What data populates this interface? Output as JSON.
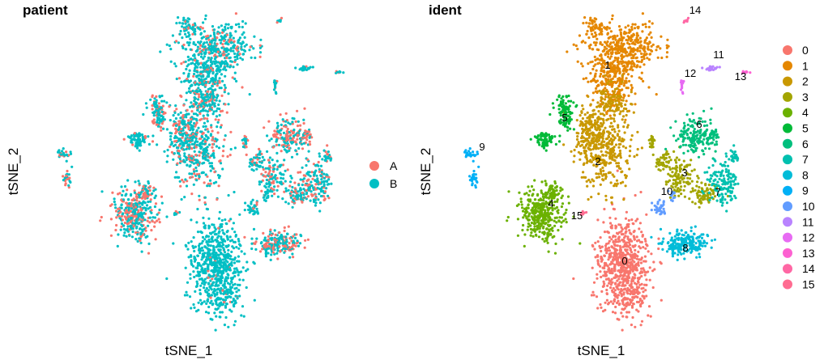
{
  "chart_data": [
    {
      "type": "scatter",
      "title": "patient",
      "xlabel": "tSNE_1",
      "ylabel": "tSNE_2",
      "legend_position": "right",
      "series": [
        {
          "name": "A",
          "color": "#F8766D"
        },
        {
          "name": "B",
          "color": "#00BFC4"
        }
      ],
      "clusters": [
        {
          "x": -33,
          "y": 36,
          "frac_a": 0.45
        },
        {
          "x": -30,
          "y": 28,
          "frac_a": 0.3
        },
        {
          "x": -21,
          "y": 12,
          "frac_a": 0.2
        },
        {
          "x": -17,
          "y": 19,
          "frac_a": 0.25
        },
        {
          "x": -9,
          "y": 0,
          "frac_a": 0.3
        },
        {
          "x": -8,
          "y": 10,
          "frac_a": 0.3
        },
        {
          "x": -20,
          "y": -22,
          "frac_a": 0.4
        },
        {
          "x": -3,
          "y": -35,
          "frac_a": 0.03
        },
        {
          "x": -14,
          "y": 30,
          "frac_a": 0.15
        },
        {
          "x": 12,
          "y": 2,
          "frac_a": 0.25
        },
        {
          "x": 15,
          "y": 15,
          "frac_a": 0.55
        },
        {
          "x": 20,
          "y": 8,
          "frac_a": 0.3
        },
        {
          "x": 15,
          "y": -22,
          "frac_a": 0.45
        },
        {
          "x": 24,
          "y": -4,
          "frac_a": 0.35
        }
      ]
    },
    {
      "type": "scatter",
      "title": "ident",
      "xlabel": "tSNE_1",
      "ylabel": "tSNE_2",
      "legend_position": "right",
      "series": [
        {
          "name": "0",
          "color": "#F8766D"
        },
        {
          "name": "1",
          "color": "#E58700"
        },
        {
          "name": "2",
          "color": "#C99800"
        },
        {
          "name": "3",
          "color": "#A3A500"
        },
        {
          "name": "4",
          "color": "#6BB100"
        },
        {
          "name": "5",
          "color": "#00BA38"
        },
        {
          "name": "6",
          "color": "#00BF7D"
        },
        {
          "name": "7",
          "color": "#00C0AF"
        },
        {
          "name": "8",
          "color": "#00BCD8"
        },
        {
          "name": "9",
          "color": "#00B0F6"
        },
        {
          "name": "10",
          "color": "#619CFF"
        },
        {
          "name": "11",
          "color": "#B983FF"
        },
        {
          "name": "12",
          "color": "#E76BF3"
        },
        {
          "name": "13",
          "color": "#FD61D1"
        },
        {
          "name": "14",
          "color": "#FF67A4"
        },
        {
          "name": "15",
          "color": "#FF6C91"
        }
      ],
      "cluster_labels": [
        {
          "label": "0",
          "x": -3,
          "y": -35
        },
        {
          "label": "1",
          "x": -4,
          "y": 36
        },
        {
          "label": "2",
          "x": -8,
          "y": 7
        },
        {
          "label": "3",
          "x": 13,
          "y": 2
        },
        {
          "label": "4",
          "x": -21,
          "y": -22
        },
        {
          "label": "5",
          "x": -18,
          "y": 19
        },
        {
          "label": "6",
          "x": 16,
          "y": 15
        },
        {
          "label": "7",
          "x": 23,
          "y": -4
        },
        {
          "label": "8",
          "x": 14,
          "y": -24
        },
        {
          "label": "9",
          "x": -38,
          "y": 16
        },
        {
          "label": "10",
          "x": 11,
          "y": -3
        },
        {
          "label": "11",
          "x": 21,
          "y": 36
        },
        {
          "label": "12",
          "x": 15,
          "y": 34
        },
        {
          "label": "13",
          "x": 28,
          "y": 34
        },
        {
          "label": "14",
          "x": 17,
          "y": 48
        },
        {
          "label": "15",
          "x": -15,
          "y": -31
        }
      ]
    }
  ]
}
